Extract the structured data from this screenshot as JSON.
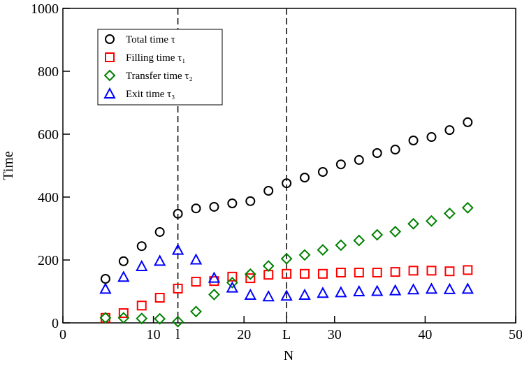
{
  "chart_data": {
    "type": "scatter",
    "x_label": "N",
    "y_label": "Time",
    "xlim": [
      0,
      50
    ],
    "ylim": [
      0,
      1000
    ],
    "xticks": [
      0,
      10,
      {
        "value": 12.7,
        "label": "l"
      },
      20,
      {
        "value": 24.7,
        "label": "L"
      },
      30,
      40,
      50
    ],
    "yticks": [
      0,
      200,
      400,
      600,
      800,
      1000
    ],
    "vlines": [
      12.7,
      24.7
    ],
    "legend": "upper left",
    "x": [
      4.7,
      6.7,
      8.7,
      10.7,
      12.7,
      14.7,
      16.7,
      18.7,
      20.7,
      22.7,
      24.7,
      26.7,
      28.7,
      30.7,
      32.7,
      34.7,
      36.7,
      38.7,
      40.7,
      42.7,
      44.7
    ],
    "series": [
      {
        "name": "Total time  τ",
        "color": "#000000",
        "marker": "circle",
        "values": [
          140,
          196,
          244,
          289,
          347,
          364,
          369,
          380,
          387,
          420,
          444,
          462,
          480,
          504,
          518,
          540,
          551,
          580,
          591,
          613,
          638
        ]
      },
      {
        "name": "Filling time  τ₁",
        "color": "#ff0000",
        "marker": "square",
        "values": [
          16,
          31,
          55,
          80,
          109,
          131,
          133,
          147,
          142,
          153,
          156,
          156,
          156,
          160,
          160,
          160,
          162,
          166,
          166,
          164,
          168
        ]
      },
      {
        "name": "Transfer time τ₂",
        "color": "#008000",
        "marker": "diamond",
        "values": [
          16,
          16,
          14,
          13,
          4,
          36,
          90,
          128,
          155,
          181,
          204,
          216,
          232,
          247,
          262,
          280,
          290,
          315,
          324,
          348,
          366
        ]
      },
      {
        "name": "Exit time τ₃",
        "color": "#0000ff",
        "marker": "triangle",
        "values": [
          108,
          146,
          180,
          197,
          232,
          201,
          143,
          112,
          89,
          84,
          86,
          89,
          95,
          97,
          100,
          101,
          103,
          106,
          108,
          107,
          108
        ]
      }
    ]
  }
}
